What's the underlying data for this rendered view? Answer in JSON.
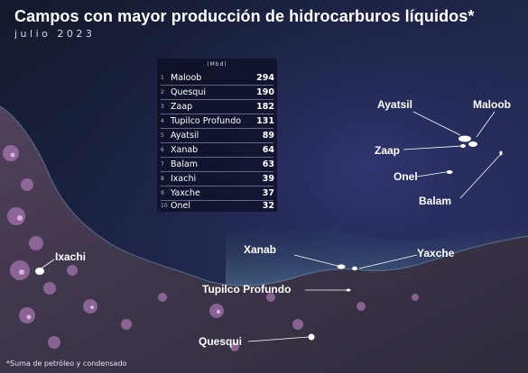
{
  "title": "Campos con mayor producción de hidrocarburos líquidos*",
  "subtitle": "julio 2023",
  "unit_label": "(Mbd)",
  "fields": [
    {
      "rank": "1",
      "name": "Maloob",
      "value": "294"
    },
    {
      "rank": "2",
      "name": "Quesqui",
      "value": "190"
    },
    {
      "rank": "3",
      "name": "Zaap",
      "value": "182"
    },
    {
      "rank": "4",
      "name": "Tupilco Profundo",
      "value": "131"
    },
    {
      "rank": "5",
      "name": "Ayatsil",
      "value": "89"
    },
    {
      "rank": "6",
      "name": "Xanab",
      "value": "64"
    },
    {
      "rank": "7",
      "name": "Balam",
      "value": "63"
    },
    {
      "rank": "8",
      "name": "Ixachi",
      "value": "39"
    },
    {
      "rank": "9",
      "name": "Yaxche",
      "value": "37"
    },
    {
      "rank": "10",
      "name": "Onel",
      "value": "32"
    }
  ],
  "map_labels": {
    "maloob": "Maloob",
    "ayatsil": "Ayatsil",
    "zaap": "Zaap",
    "onel": "Onel",
    "balam": "Balam",
    "xanab": "Xanab",
    "yaxche": "Yaxche",
    "tupilco": "Tupilco Profundo",
    "ixachi": "Ixachi",
    "quesqui": "Quesqui"
  },
  "footnote": "*Suma de petróleo y condensado",
  "colors": {
    "sea_deep": "#20264a",
    "sea_mid": "#2b3160",
    "land_dark": "#3a2f44",
    "land_light": "#6a4f6a",
    "city_lights": "#d08ad8",
    "text": "#ffffff"
  }
}
